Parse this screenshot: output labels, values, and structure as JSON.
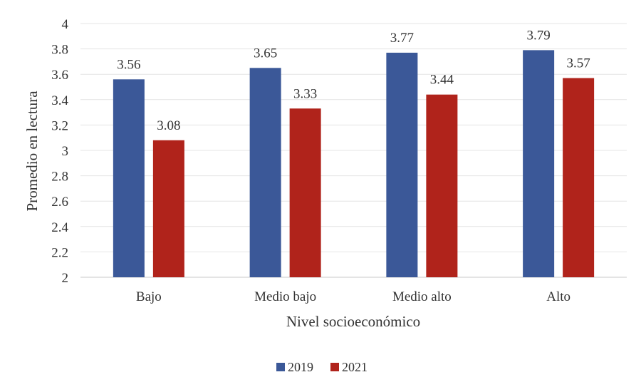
{
  "chart_data": {
    "type": "bar",
    "title": "",
    "xlabel": "Nivel socioeconómico",
    "ylabel": "Promedio en lectura",
    "ylim": [
      2,
      4
    ],
    "yticks": [
      "2",
      "2.2",
      "2.4",
      "2.6",
      "2.8",
      "3",
      "3.2",
      "3.4",
      "3.6",
      "3.8",
      "4"
    ],
    "grid": true,
    "legend_position": "bottom",
    "categories": [
      "Bajo",
      "Medio bajo",
      "Medio alto",
      "Alto"
    ],
    "series": [
      {
        "name": "2019",
        "color": "#3B5898",
        "values": [
          3.56,
          3.65,
          3.77,
          3.79
        ],
        "labels": [
          "3.56",
          "3.65",
          "3.77",
          "3.79"
        ]
      },
      {
        "name": "2021",
        "color": "#B0231B",
        "values": [
          3.08,
          3.33,
          3.44,
          3.57
        ],
        "labels": [
          "3.08",
          "3.33",
          "3.44",
          "3.57"
        ]
      }
    ]
  }
}
